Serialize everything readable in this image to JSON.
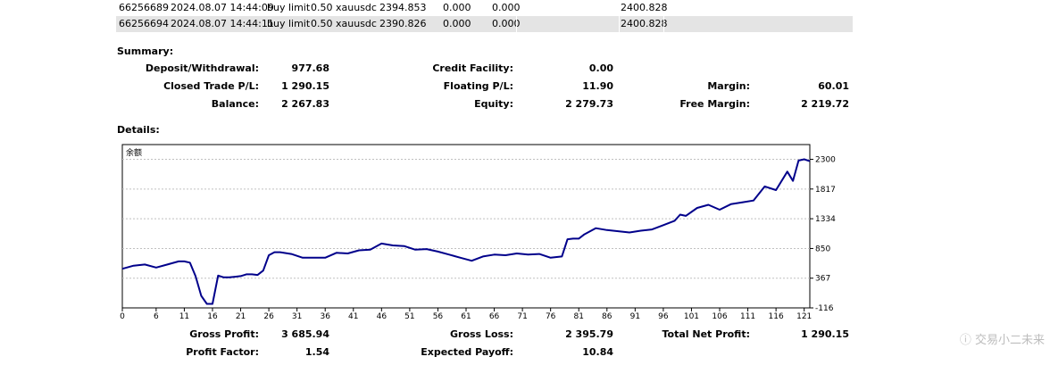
{
  "orders": [
    {
      "ticket": "66256689",
      "time": "2024.08.07 14:44:09",
      "type": "buy limit",
      "volume": "0.50",
      "symbol": "xauusdc",
      "price": "2394.853",
      "sl": "0.000",
      "tp": "0.000",
      "market": "2400.828"
    },
    {
      "ticket": "66256694",
      "time": "2024.08.07 14:44:11",
      "type": "buy limit",
      "volume": "0.50",
      "symbol": "xauusdc",
      "price": "2390.826",
      "sl": "0.000",
      "tp": "0.000",
      "market": "2400.828"
    }
  ],
  "summary": {
    "title": "Summary:",
    "deposit_label": "Deposit/Withdrawal:",
    "deposit_value": "977.68",
    "credit_label": "Credit Facility:",
    "credit_value": "0.00",
    "closed_label": "Closed Trade P/L:",
    "closed_value": "1 290.15",
    "floating_label": "Floating P/L:",
    "floating_value": "11.90",
    "margin_label": "Margin:",
    "margin_value": "60.01",
    "balance_label": "Balance:",
    "balance_value": "2 267.83",
    "equity_label": "Equity:",
    "equity_value": "2 279.73",
    "free_margin_label": "Free Margin:",
    "free_margin_value": "2 219.72"
  },
  "details": {
    "title": "Details:",
    "gross_profit_label": "Gross Profit:",
    "gross_profit_value": "3 685.94",
    "gross_loss_label": "Gross Loss:",
    "gross_loss_value": "2 395.79",
    "net_profit_label": "Total Net Profit:",
    "net_profit_value": "1 290.15",
    "profit_factor_label": "Profit Factor:",
    "profit_factor_value": "1.54",
    "expected_payoff_label": "Expected Payoff:",
    "expected_payoff_value": "10.84"
  },
  "watermark": "交易小二未来",
  "colors": {
    "line": "#00008b",
    "grid": "#c0c0c0",
    "row_alt": "#e4e4e4"
  },
  "chart_data": {
    "type": "line",
    "title": "余额",
    "x_ticks": [
      0,
      6,
      11,
      16,
      21,
      26,
      31,
      36,
      41,
      46,
      51,
      56,
      61,
      66,
      71,
      76,
      81,
      86,
      91,
      96,
      101,
      106,
      111,
      116,
      121
    ],
    "y_ticks": [
      -116,
      367,
      850,
      1334,
      1817,
      2300
    ],
    "ylim": [
      -116,
      2540
    ],
    "xlim": [
      0,
      122
    ],
    "grid": true,
    "series": [
      {
        "x": [
          0,
          2,
          4,
          6,
          8,
          10,
          11,
          12,
          13,
          14,
          15,
          16,
          17,
          18,
          19,
          20,
          21,
          22,
          23,
          24,
          25,
          26,
          27,
          28,
          30,
          32,
          34,
          36,
          38,
          40,
          42,
          44,
          46,
          48,
          50,
          52,
          54,
          56,
          58,
          60,
          62,
          64,
          66,
          68,
          70,
          72,
          74,
          76,
          78,
          79,
          80,
          81,
          82,
          84,
          86,
          88,
          90,
          92,
          94,
          96,
          98,
          99,
          100,
          102,
          104,
          106,
          108,
          110,
          112,
          114,
          116,
          118,
          119,
          120,
          121,
          122
        ],
        "values": [
          520,
          570,
          590,
          540,
          590,
          640,
          640,
          620,
          400,
          80,
          -50,
          -50,
          410,
          380,
          380,
          390,
          400,
          430,
          430,
          420,
          490,
          740,
          790,
          790,
          760,
          700,
          700,
          700,
          780,
          770,
          820,
          830,
          930,
          900,
          890,
          830,
          840,
          800,
          750,
          700,
          650,
          720,
          750,
          740,
          770,
          750,
          760,
          700,
          720,
          1000,
          1010,
          1010,
          1080,
          1180,
          1150,
          1130,
          1110,
          1140,
          1160,
          1230,
          1300,
          1400,
          1380,
          1510,
          1560,
          1480,
          1570,
          1600,
          1630,
          1860,
          1800,
          2100,
          1950,
          2280,
          2300,
          2270
        ]
      }
    ]
  }
}
